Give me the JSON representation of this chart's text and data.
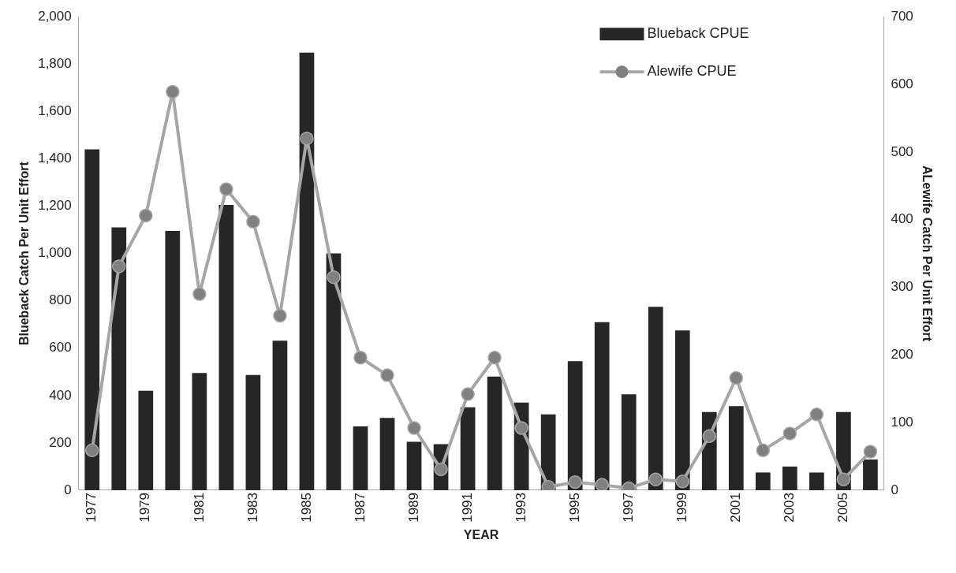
{
  "chart_data": {
    "type": "bar",
    "categories": [
      "1977",
      null,
      "1979",
      null,
      "1981",
      null,
      "1983",
      null,
      "1985",
      null,
      "1987",
      null,
      "1989",
      null,
      "1991",
      null,
      "1993",
      null,
      "1995",
      null,
      "1997",
      null,
      "1999",
      null,
      "2001",
      null,
      "2003",
      null,
      "2005",
      null
    ],
    "series": [
      {
        "name": "Blueback CPUE",
        "color": "#262626",
        "values": [
          1440,
          1110,
          420,
          1095,
          495,
          1205,
          487,
          632,
          1848,
          1000,
          270,
          305,
          205,
          195,
          350,
          480,
          370,
          320,
          545,
          710,
          405,
          775,
          675,
          330,
          355,
          75,
          100,
          75,
          330,
          130
        ]
      },
      {
        "name": "Alewife CPUE",
        "type": "line",
        "axis": "y2",
        "color": "#a6a6a6",
        "values": [
          59,
          331,
          406,
          589,
          290,
          445,
          397,
          258,
          520,
          315,
          196,
          170,
          92,
          31,
          142,
          196,
          92,
          5,
          12,
          8,
          3,
          16,
          13,
          80,
          166,
          59,
          84,
          112,
          16,
          57
        ]
      }
    ],
    "xlabel": "YEAR",
    "ylabel": "Blueback Catch Per Unit Effort",
    "y2label": "ALewife Catch Per Unit Effort",
    "ylim": [
      0,
      2000
    ],
    "yticks": [
      0,
      200,
      400,
      600,
      800,
      {
        "value": 1000,
        "label": "1,000"
      },
      {
        "value": 1200,
        "label": "1,200"
      },
      {
        "value": 1400,
        "label": "1,400"
      },
      {
        "value": 1600,
        "label": "1,600"
      },
      {
        "value": 1800,
        "label": "1,800"
      },
      {
        "value": 2000,
        "label": "2,000"
      }
    ],
    "y2lim": [
      0,
      700
    ],
    "y2ticks": [
      0,
      100,
      200,
      300,
      400,
      500,
      600,
      700
    ],
    "grid": false,
    "legend": "top right",
    "marker": "circle"
  }
}
